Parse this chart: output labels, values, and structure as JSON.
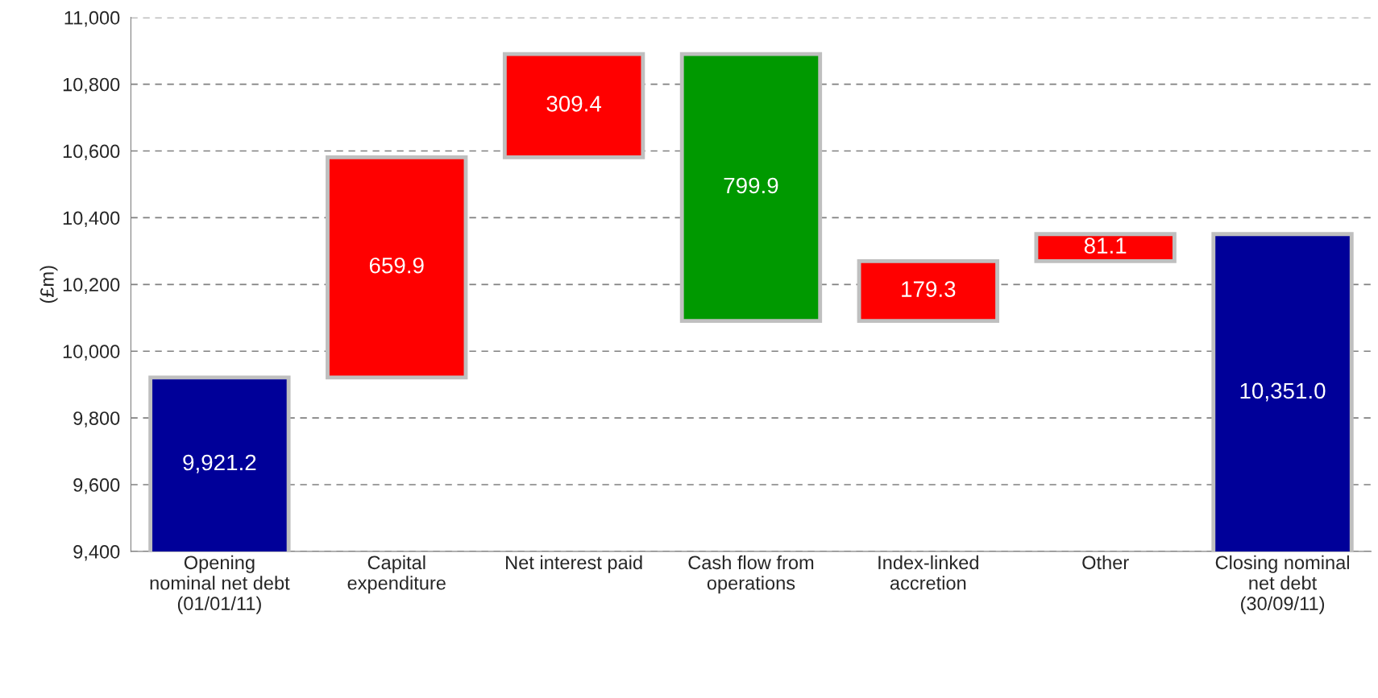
{
  "chart_data": {
    "type": "bar",
    "ylabel": "(£m)",
    "categories": [
      "Opening\nnominal net debt\n(01/01/11)",
      "Capital\nexpenditure",
      "Net interest paid",
      "Cash flow from\noperations",
      "Index-linked\naccretion",
      "Other",
      "Closing nominal\nnet debt\n(30/09/11)"
    ],
    "values": [
      9921.2,
      659.9,
      309.4,
      799.9,
      179.3,
      81.1,
      10351.0
    ],
    "base": [
      null,
      9921.2,
      10581.1,
      10090.6,
      10090.6,
      10269.9,
      null
    ],
    "colors": [
      "#000099",
      "#ff0000",
      "#ff0000",
      "#009900",
      "#ff0000",
      "#ff0000",
      "#000099"
    ],
    "value_labels": [
      "9,921.2",
      "659.9",
      "309.4",
      "799.9",
      "179.3",
      "81.1",
      "10,351.0"
    ],
    "ylim": [
      9400,
      11000
    ],
    "yticks": [
      {
        "value": 9400,
        "label": "9,400"
      },
      {
        "value": 9600,
        "label": "9,600"
      },
      {
        "value": 9800,
        "label": "9,800"
      },
      {
        "value": 10000,
        "label": "10,000"
      },
      {
        "value": 10200,
        "label": "10,200"
      },
      {
        "value": 10400,
        "label": "10,400"
      },
      {
        "value": 10600,
        "label": "10,600"
      },
      {
        "value": 10800,
        "label": "10,800"
      },
      {
        "value": 11000,
        "label": "11,000"
      }
    ],
    "grid": "y",
    "legend": false
  }
}
